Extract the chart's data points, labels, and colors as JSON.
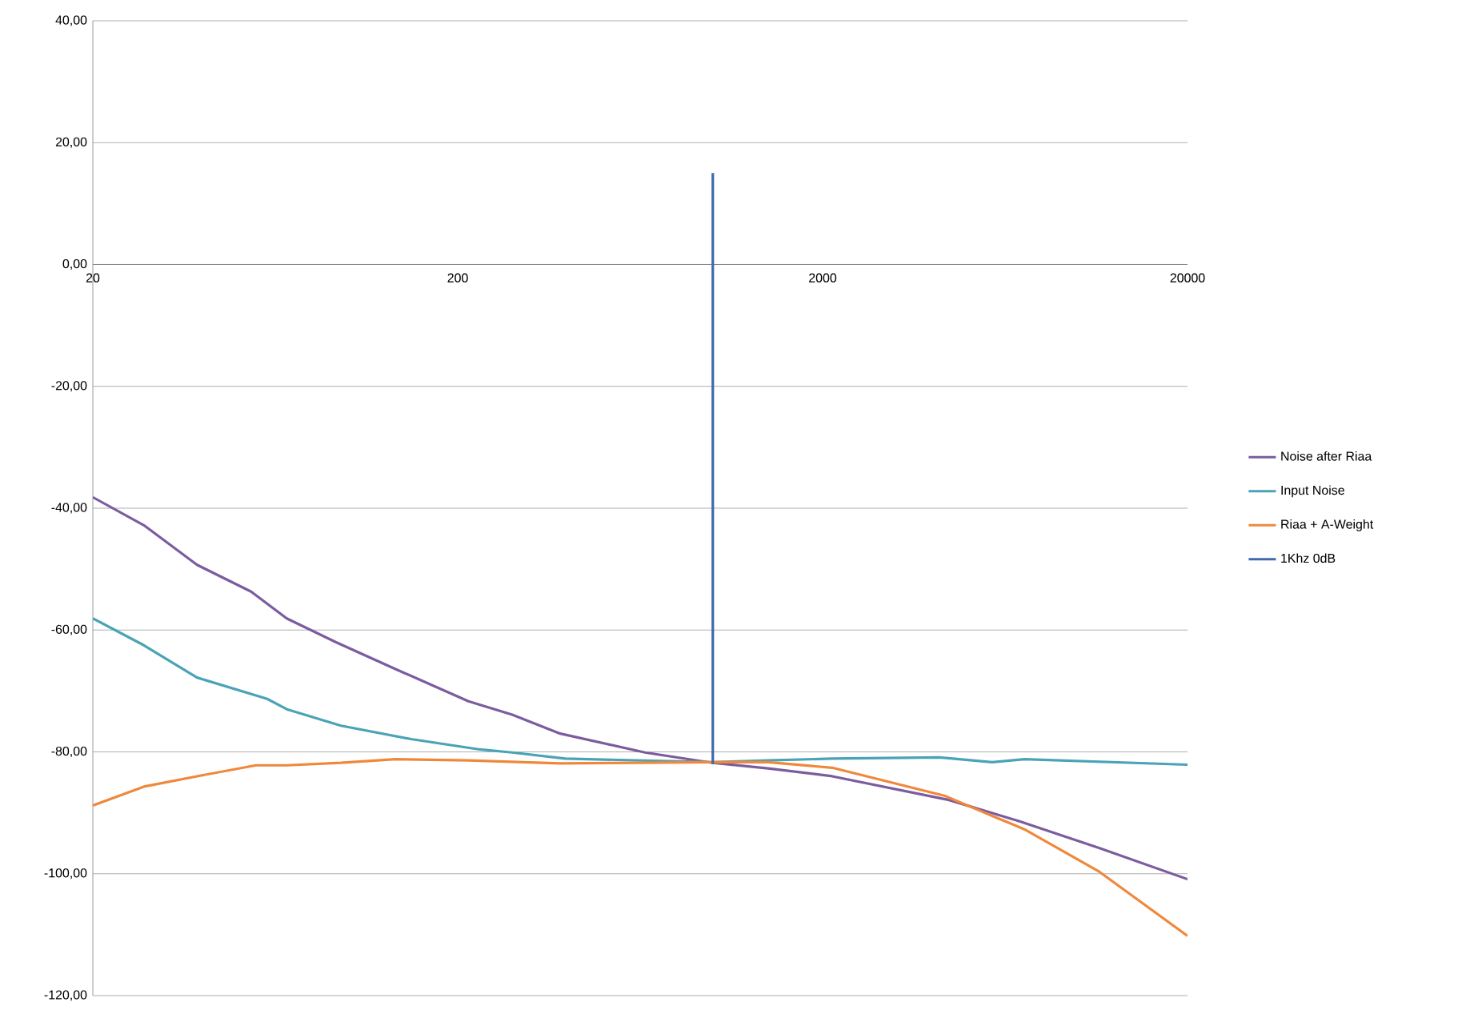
{
  "chart_data": {
    "type": "line",
    "log": "x",
    "grid": "y",
    "legend": "right",
    "marker": "none",
    "line_style": "solid",
    "xlim": [
      20,
      20000
    ],
    "xticks": [
      20,
      200,
      2000,
      20000
    ],
    "ylim": [
      -120,
      40
    ],
    "yticks": [
      {
        "value": -120,
        "label": "-120,00"
      },
      {
        "value": -100,
        "label": "-100,00"
      },
      {
        "value": -80,
        "label": "-80,00"
      },
      {
        "value": -60,
        "label": "-60,00"
      },
      {
        "value": -40,
        "label": "-40,00"
      },
      {
        "value": -20,
        "label": "-20,00"
      },
      {
        "value": 0,
        "label": "0,00"
      },
      {
        "value": 20,
        "label": "20,00"
      },
      {
        "value": 40,
        "label": "40,00"
      }
    ],
    "series": [
      {
        "name": "Noise after Riaa",
        "color": "#7b5c9f",
        "x": [
          20,
          27.6,
          38.6,
          54.3,
          68,
          92.8,
          135,
          214,
          282,
          382,
          652,
          1000,
          1418,
          2125,
          4440,
          6930,
          11480,
          20000
        ],
        "values": [
          -38.2,
          -42.8,
          -49.3,
          -53.7,
          -58.1,
          -62,
          -66.4,
          -71.7,
          -73.9,
          -77,
          -80.1,
          -81.8,
          -82.7,
          -84,
          -87.9,
          -91.4,
          -95.8,
          -100.9
        ]
      },
      {
        "name": "Input Noise",
        "color": "#4aa3b6",
        "x": [
          20,
          27.6,
          38.6,
          60.1,
          68,
          95.7,
          149,
          230,
          282,
          394,
          1000,
          1418,
          2125,
          4180,
          5830,
          7140,
          20000
        ],
        "values": [
          -58.1,
          -62.5,
          -67.8,
          -71.3,
          -73,
          -75.7,
          -77.9,
          -79.6,
          -80.1,
          -81.1,
          -81.7,
          -81.4,
          -81.1,
          -80.9,
          -81.7,
          -81.2,
          -82.1
        ]
      },
      {
        "name": "Riaa + A-Weight",
        "color": "#f0883c",
        "x": [
          20,
          27.6,
          38.6,
          56,
          68,
          95.7,
          135,
          214,
          382,
          1000,
          1418,
          2125,
          4310,
          5830,
          7140,
          11480,
          20000
        ],
        "values": [
          -88.8,
          -85.7,
          -84,
          -82.2,
          -82.2,
          -81.8,
          -81.2,
          -81.4,
          -81.9,
          -81.7,
          -81.7,
          -82.6,
          -87.2,
          -90.5,
          -92.7,
          -99.7,
          -110.2
        ]
      },
      {
        "name": "1Khz 0dB",
        "color": "#4068ad",
        "x": [
          1000,
          1000
        ],
        "values": [
          -82,
          15
        ]
      }
    ]
  }
}
